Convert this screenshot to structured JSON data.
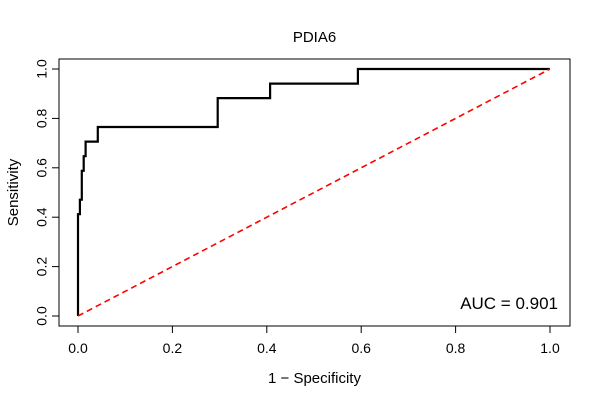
{
  "chart_data": {
    "type": "line",
    "title": "PDIA6",
    "xlabel": "1 − Specificity",
    "ylabel": "Sensitivity",
    "xlim": [
      0,
      1
    ],
    "ylim": [
      0,
      1
    ],
    "x_ticks": [
      0.0,
      0.2,
      0.4,
      0.6,
      0.8,
      1.0
    ],
    "x_tick_labels": [
      "0.0",
      "0.2",
      "0.4",
      "0.6",
      "0.8",
      "1.0"
    ],
    "y_ticks": [
      0.0,
      0.2,
      0.4,
      0.6,
      0.8,
      1.0
    ],
    "y_tick_labels": [
      "0.0",
      "0.2",
      "0.4",
      "0.6",
      "0.8",
      "1.0"
    ],
    "grid": false,
    "series": [
      {
        "name": "ROC",
        "color": "#000000",
        "style": "solid",
        "points": [
          [
            0.0,
            0.0
          ],
          [
            0.0,
            0.412
          ],
          [
            0.004,
            0.412
          ],
          [
            0.004,
            0.471
          ],
          [
            0.008,
            0.471
          ],
          [
            0.008,
            0.588
          ],
          [
            0.012,
            0.588
          ],
          [
            0.012,
            0.647
          ],
          [
            0.016,
            0.647
          ],
          [
            0.016,
            0.706
          ],
          [
            0.042,
            0.706
          ],
          [
            0.042,
            0.765
          ],
          [
            0.296,
            0.765
          ],
          [
            0.296,
            0.882
          ],
          [
            0.407,
            0.882
          ],
          [
            0.407,
            0.941
          ],
          [
            0.593,
            0.941
          ],
          [
            0.593,
            1.0
          ],
          [
            1.0,
            1.0
          ]
        ]
      },
      {
        "name": "reference",
        "color": "#ff0000",
        "style": "dashed",
        "points": [
          [
            0.0,
            0.0
          ],
          [
            1.0,
            1.0
          ]
        ]
      }
    ],
    "annotation": "AUC = 0.901"
  }
}
